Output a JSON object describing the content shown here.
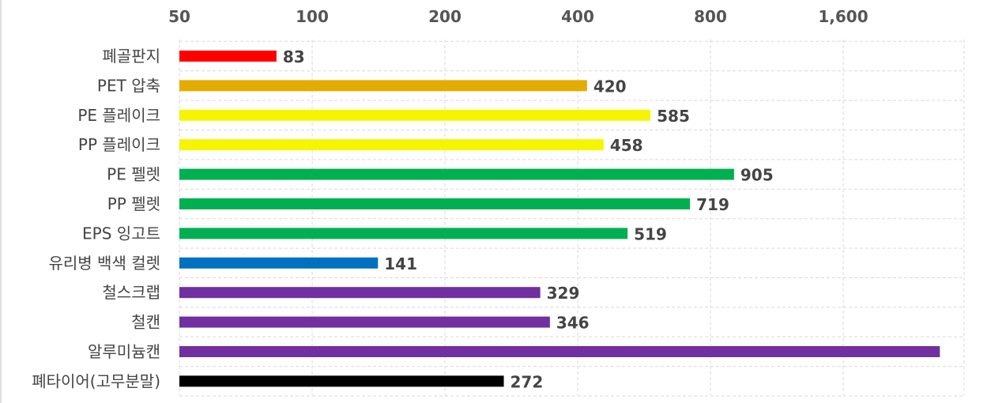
{
  "chart_data": {
    "type": "bar",
    "orientation": "horizontal",
    "x_scale": "log2",
    "xlim": [
      50,
      2650
    ],
    "x_ticks": [
      50,
      100,
      200,
      400,
      800,
      1600
    ],
    "x_tick_labels": [
      "50",
      "100",
      "200",
      "400",
      "800",
      "1,600"
    ],
    "x_axis_position": "top",
    "grid": true,
    "legend": "none",
    "categories": [
      "폐골판지",
      "PET 압축",
      "PE 플레이크",
      "PP 플레이크",
      "PE 펠렛",
      "PP 펠렛",
      "EPS 잉고트",
      "유리병 백색 컬렛",
      "철스크랩",
      "철캔",
      "알루미늄캔",
      "폐타이어(고무분말)"
    ],
    "values": [
      83,
      420,
      585,
      458,
      905,
      719,
      519,
      141,
      329,
      346,
      2650,
      272
    ],
    "data_labels": [
      "83",
      "420",
      "585",
      "458",
      "905",
      "719",
      "519",
      "141",
      "329",
      "346",
      "",
      "272"
    ],
    "colors": [
      "#ff0000",
      "#e3ac00",
      "#f5f500",
      "#f5f500",
      "#00b050",
      "#00b050",
      "#00b050",
      "#0070c0",
      "#7030a0",
      "#7030a0",
      "#7030a0",
      "#000000"
    ]
  }
}
